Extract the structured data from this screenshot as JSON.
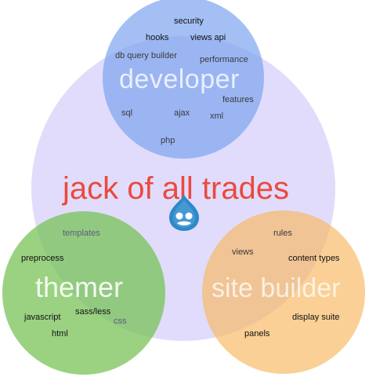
{
  "diagram": {
    "center_label": "jack of all trades",
    "circles": {
      "developer": {
        "label": "developer",
        "color": "#7fa6f0",
        "tags": {
          "security": "security",
          "hooks": "hooks",
          "views_api": "views api",
          "db_query_builder": "db query builder",
          "performance": "performance",
          "features": "features",
          "sql": "sql",
          "ajax": "ajax",
          "xml": "xml",
          "php": "php"
        }
      },
      "themer": {
        "label": "themer",
        "color": "#77c257",
        "tags": {
          "templates": "templates",
          "preprocess": "preprocess",
          "sass_less": "sass/less",
          "css": "css",
          "javascript": "javascript",
          "html": "html"
        }
      },
      "site_builder": {
        "label": "site builder",
        "color": "#f8b760",
        "tags": {
          "rules": "rules",
          "views": "views",
          "content_types": "content types",
          "display_suite": "display suite",
          "panels": "panels"
        }
      },
      "jack_of_all_trades": {
        "color": "#dcd6fb"
      }
    },
    "colors": {
      "center_label": "#ea4a3e",
      "logo_blue": "#2f88c8"
    },
    "icons": {
      "center": "drupal-drop-icon"
    }
  }
}
